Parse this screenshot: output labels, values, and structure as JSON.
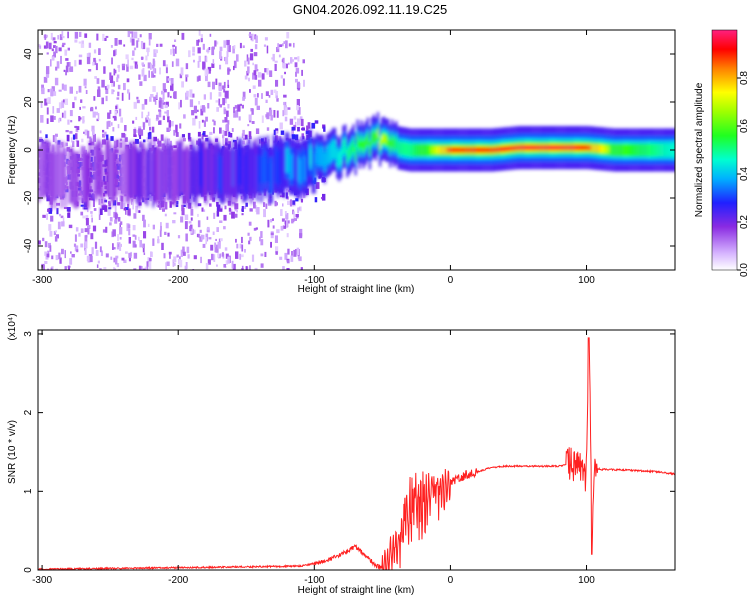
{
  "title": "GN04.2026.092.11.19.C25",
  "chart_data": [
    {
      "type": "heatmap",
      "xlabel": "Height of straight line (km)",
      "ylabel": "Frequency (Hz)",
      "xlim": [
        -303,
        165
      ],
      "ylim": [
        -50,
        50
      ],
      "xticks": [
        -300,
        -200,
        -100,
        0,
        100
      ],
      "yticks": [
        -40,
        -20,
        0,
        20,
        40
      ],
      "colorbar": {
        "label": "Normalized spectral amplitude",
        "range": [
          0,
          1
        ],
        "ticks": [
          0.0,
          0.2,
          0.4,
          0.6,
          0.8
        ]
      },
      "ridge": {
        "x": [
          -303,
          -250,
          -200,
          -160,
          -130,
          -110,
          -90,
          -75,
          -60,
          -50,
          -40,
          -30,
          -15,
          0,
          30,
          50,
          70,
          90,
          100,
          120,
          165
        ],
        "freq": [
          -10,
          -10,
          -9,
          -9,
          -8,
          -6,
          -3,
          0,
          3,
          5,
          1,
          0,
          0,
          0,
          0,
          1,
          1,
          1,
          1,
          0,
          0
        ],
        "amplitude": [
          0.15,
          0.15,
          0.2,
          0.25,
          0.3,
          0.35,
          0.4,
          0.5,
          0.6,
          0.7,
          0.5,
          0.5,
          0.65,
          0.9,
          0.92,
          0.95,
          0.95,
          0.95,
          0.9,
          0.6,
          0.45
        ]
      }
    },
    {
      "type": "line",
      "xlabel": "Height of straight line (km)",
      "ylabel": "SNR (10 * v/v)",
      "y_multiplier": "(x10⁴)",
      "xlim": [
        -303,
        165
      ],
      "ylim": [
        0,
        3.05
      ],
      "xticks": [
        -300,
        -200,
        -100,
        0,
        100
      ],
      "yticks": [
        0,
        1,
        2,
        3
      ],
      "series": [
        {
          "name": "SNR",
          "color": "#ff2020",
          "x": [
            -303,
            -250,
            -200,
            -150,
            -110,
            -90,
            -80,
            -70,
            -60,
            -55,
            -50,
            -45,
            -40,
            -35,
            -30,
            -25,
            -20,
            -15,
            -10,
            -5,
            0,
            10,
            20,
            30,
            40,
            60,
            80,
            90,
            95,
            100,
            102,
            104,
            106,
            110,
            130,
            150,
            165
          ],
          "y": [
            0.01,
            0.02,
            0.03,
            0.04,
            0.05,
            0.12,
            0.2,
            0.3,
            0.15,
            0.05,
            0.03,
            0.1,
            0.3,
            0.55,
            0.8,
            0.85,
            0.9,
            0.95,
            1.0,
            1.02,
            1.1,
            1.2,
            1.25,
            1.3,
            1.32,
            1.32,
            1.32,
            1.35,
            1.3,
            1.2,
            2.9,
            0.3,
            1.3,
            1.28,
            1.27,
            1.25,
            1.22
          ]
        }
      ]
    }
  ]
}
